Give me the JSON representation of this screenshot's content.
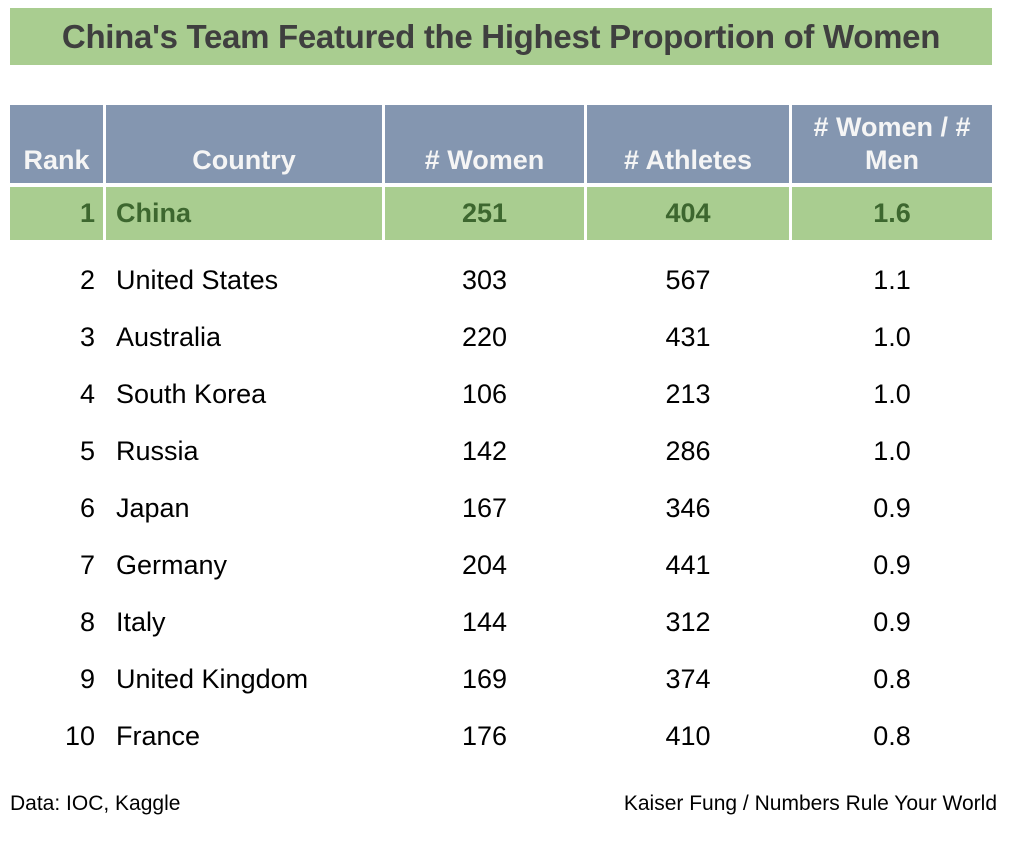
{
  "chart_data": {
    "type": "table",
    "title": "China's Team Featured the Highest Proportion of Women",
    "columns": [
      "Rank",
      "Country",
      "# Women",
      "# Athletes",
      "# Women / # Men"
    ],
    "header_labels": {
      "rank": "Rank",
      "country": "Country",
      "women": "# Women",
      "athletes": "# Athletes",
      "ratio": "# Women / #\nMen"
    },
    "rows": [
      {
        "rank": "1",
        "country": "China",
        "women": "251",
        "athletes": "404",
        "ratio": "1.6"
      },
      {
        "rank": "2",
        "country": "United States",
        "women": "303",
        "athletes": "567",
        "ratio": "1.1"
      },
      {
        "rank": "3",
        "country": "Australia",
        "women": "220",
        "athletes": "431",
        "ratio": "1.0"
      },
      {
        "rank": "4",
        "country": "South Korea",
        "women": "106",
        "athletes": "213",
        "ratio": "1.0"
      },
      {
        "rank": "5",
        "country": "Russia",
        "women": "142",
        "athletes": "286",
        "ratio": "1.0"
      },
      {
        "rank": "6",
        "country": "Japan",
        "women": "167",
        "athletes": "346",
        "ratio": "0.9"
      },
      {
        "rank": "7",
        "country": "Germany",
        "women": "204",
        "athletes": "441",
        "ratio": "0.9"
      },
      {
        "rank": "8",
        "country": "Italy",
        "women": "144",
        "athletes": "312",
        "ratio": "0.9"
      },
      {
        "rank": "9",
        "country": "United Kingdom",
        "women": "169",
        "athletes": "374",
        "ratio": "0.8"
      },
      {
        "rank": "10",
        "country": "France",
        "women": "176",
        "athletes": "410",
        "ratio": "0.8"
      }
    ],
    "highlighted_country": "China",
    "legend_position": "none",
    "grid": "off"
  },
  "footer": {
    "source": "Data: IOC, Kaggle",
    "credit": "Kaiser Fung / Numbers Rule Your World"
  },
  "colors": {
    "accent_green": "#A9CD90",
    "header_blue": "#8496B0",
    "highlight_text_green": "#3D672F",
    "title_text_gray": "#3F3F3F",
    "header_text": "#F5F5F5",
    "body_text": "#000000"
  }
}
